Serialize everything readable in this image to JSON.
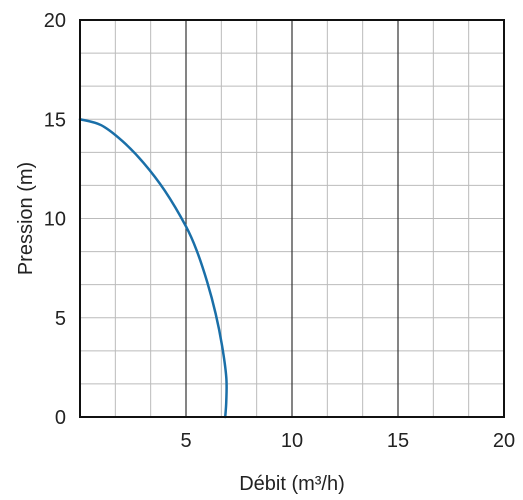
{
  "chart_data": {
    "type": "line",
    "title": "",
    "xlabel": "Débit (m³/h)",
    "ylabel": "Pression (m)",
    "xlim": [
      0,
      20
    ],
    "ylim": [
      0,
      20
    ],
    "x_ticks": [
      5,
      10,
      15,
      20
    ],
    "x_tick_labels": [
      "5",
      "10",
      "15",
      "20"
    ],
    "y_ticks": [
      0,
      5,
      10,
      15,
      20
    ],
    "y_tick_labels": [
      "0",
      "5",
      "10",
      "15",
      "20"
    ],
    "grid": true,
    "minor_grid_step": 1.6667,
    "major_grid_x": [
      5,
      10,
      15
    ],
    "series": [
      {
        "color": "#1a6fa8",
        "x": [
          0,
          1,
          2,
          3,
          4,
          5,
          5.5,
          6,
          6.4,
          6.7,
          6.9,
          6.9,
          6.85
        ],
        "y": [
          15,
          14.7,
          13.9,
          12.8,
          11.4,
          9.6,
          8.4,
          6.8,
          5.2,
          3.6,
          2.0,
          0.8,
          0
        ]
      }
    ],
    "colors": {
      "grid_minor": "#bbbbbb",
      "grid_major": "#333333",
      "frame": "#111111",
      "curve": "#1a6fa8"
    }
  }
}
